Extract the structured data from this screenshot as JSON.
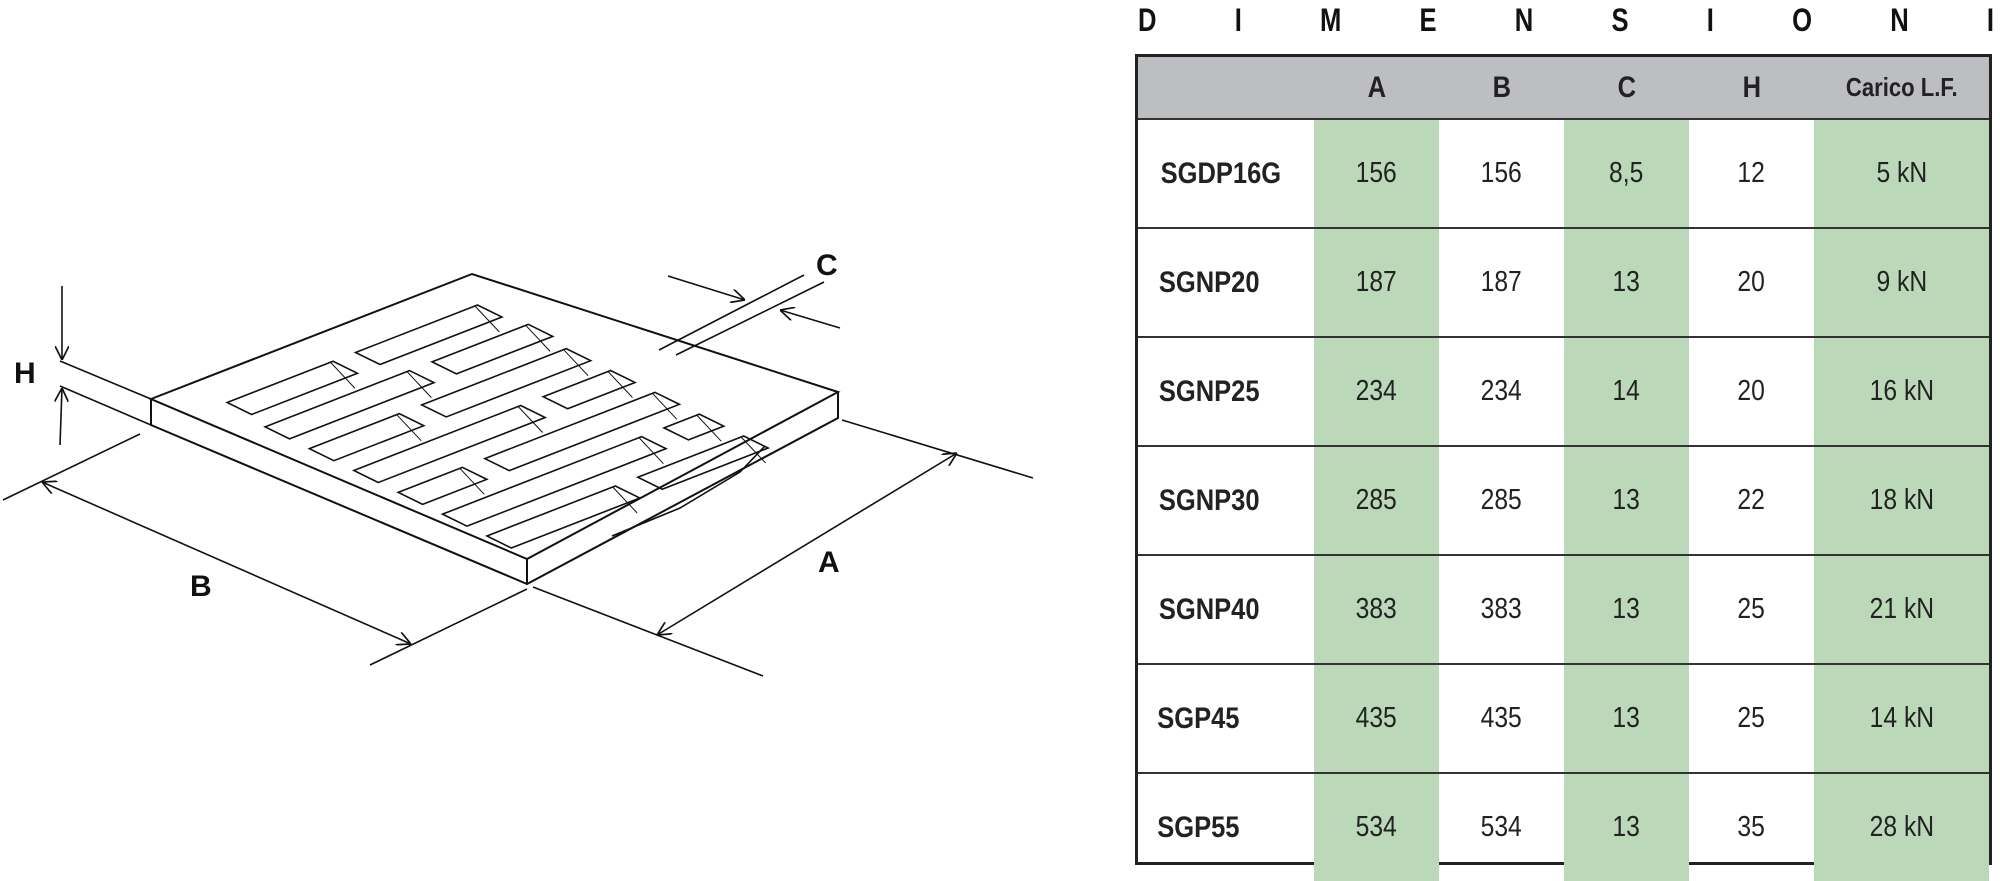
{
  "title_letters": [
    "D",
    "I",
    "M",
    "E",
    "N",
    "S",
    "I",
    "O",
    "N",
    "I"
  ],
  "drawing_labels": {
    "A": "A",
    "B": "B",
    "C": "C",
    "H": "H"
  },
  "table": {
    "headers": [
      "",
      "A",
      "B",
      "C",
      "H",
      "Carico L.F."
    ],
    "rows": [
      [
        "SGDP16G",
        "156",
        "156",
        "8,5",
        "12",
        "5 kN"
      ],
      [
        "SGNP20",
        "187",
        "187",
        "13",
        "20",
        "9 kN"
      ],
      [
        "SGNP25",
        "234",
        "234",
        "14",
        "20",
        "16 kN"
      ],
      [
        "SGNP30",
        "285",
        "285",
        "13",
        "22",
        "18 kN"
      ],
      [
        "SGNP40",
        "383",
        "383",
        "13",
        "25",
        "21 kN"
      ],
      [
        "SGP45",
        "435",
        "435",
        "13",
        "25",
        "14 kN"
      ],
      [
        "SGP55",
        "534",
        "534",
        "13",
        "35",
        "28 kN"
      ]
    ]
  },
  "colors": {
    "header_bg": "#bdbec1",
    "highlight_column": "#bbd9b9",
    "border": "#222222"
  }
}
